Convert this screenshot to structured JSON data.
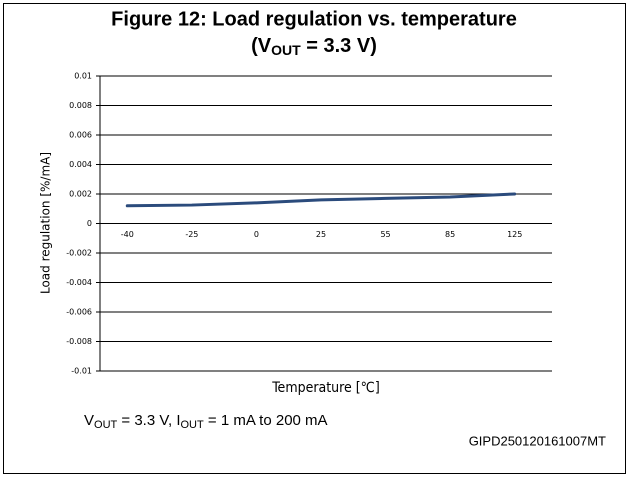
{
  "chart_data": {
    "type": "line",
    "title": "Figure 12: Load regulation vs. temperature",
    "subtitle": {
      "pre": "(V",
      "sub": "OUT",
      "post": " = 3.3 V)"
    },
    "x_label": "Temperature [℃]",
    "y_label": "Load regulation [%/mA]",
    "annotation": {
      "p1": "V",
      "s1": "OUT",
      "p2": " = 3.3 V, I",
      "s2": "OUT",
      "p3": " = 1 mA to 200 mA"
    },
    "figure_id": "GIPD250120161007MT",
    "categories": [
      "-40",
      "-25",
      "0",
      "25",
      "55",
      "85",
      "125"
    ],
    "values": [
      0.0012,
      0.00125,
      0.0014,
      0.0016,
      0.0017,
      0.0018,
      0.002
    ],
    "color": "#2b4b7c",
    "ylim": [
      -0.01,
      0.01
    ],
    "yticks": [
      0.01,
      0.008,
      0.006,
      0.004,
      0.002,
      0,
      -0.002,
      -0.004,
      -0.006,
      -0.008,
      -0.01
    ],
    "grid": true
  }
}
